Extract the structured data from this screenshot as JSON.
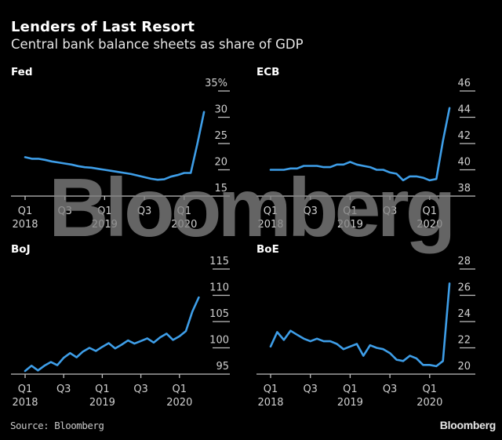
{
  "header": {
    "title": "Lenders of Last Resort",
    "subtitle": "Central bank balance sheets as share of GDP"
  },
  "footer": {
    "source": "Source: Bloomberg",
    "logo": "Bloomberg"
  },
  "watermark": "Bloomberg",
  "colors": {
    "background": "#000000",
    "line": "#3e9ee8",
    "axis": "#bfbfbf",
    "text": "#ffffff"
  },
  "chart_data": [
    {
      "type": "line",
      "title": "Fed",
      "xlabel": "",
      "ylabel": "",
      "unit": "%",
      "grid": false,
      "y_ticks": [
        "15",
        "20",
        "25",
        "30",
        "35%"
      ],
      "y_tick_values": [
        15,
        20,
        25,
        30,
        35
      ],
      "ylim": [
        15,
        35
      ],
      "x_ticks": [
        {
          "q": "Q1",
          "year": "2018",
          "index": 0
        },
        {
          "q": "Q3",
          "year": "",
          "index": 6
        },
        {
          "q": "Q1",
          "year": "2019",
          "index": 12
        },
        {
          "q": "Q3",
          "year": "",
          "index": 18
        },
        {
          "q": "Q1",
          "year": "2020",
          "index": 24
        }
      ],
      "x_frequency": "monthly",
      "x_start": "Jan 2018",
      "x_end": "Apr 2020",
      "series": [
        {
          "name": "Fed",
          "values": [
            22.4,
            22.1,
            22.1,
            21.9,
            21.6,
            21.4,
            21.2,
            21.0,
            20.7,
            20.5,
            20.4,
            20.2,
            20.0,
            19.8,
            19.6,
            19.4,
            19.2,
            18.9,
            18.6,
            18.3,
            18.1,
            18.2,
            18.7,
            19.0,
            19.4,
            19.4,
            25.0,
            31.0
          ]
        }
      ]
    },
    {
      "type": "line",
      "title": "ECB",
      "xlabel": "",
      "ylabel": "",
      "unit": "%",
      "grid": false,
      "y_ticks": [
        "38",
        "40",
        "42",
        "44",
        "46"
      ],
      "y_tick_values": [
        38,
        40,
        42,
        44,
        46
      ],
      "ylim": [
        38,
        46
      ],
      "x_ticks": [
        {
          "q": "Q1",
          "year": "2018",
          "index": 0
        },
        {
          "q": "Q3",
          "year": "",
          "index": 6
        },
        {
          "q": "Q1",
          "year": "2019",
          "index": 12
        },
        {
          "q": "Q3",
          "year": "",
          "index": 18
        },
        {
          "q": "Q1",
          "year": "2020",
          "index": 24
        }
      ],
      "x_frequency": "monthly",
      "x_start": "Jan 2018",
      "x_end": "Apr 2020",
      "series": [
        {
          "name": "ECB",
          "values": [
            40.0,
            40.0,
            40.0,
            40.1,
            40.1,
            40.3,
            40.3,
            40.3,
            40.2,
            40.2,
            40.4,
            40.4,
            40.6,
            40.4,
            40.3,
            40.2,
            40.0,
            40.0,
            39.8,
            39.7,
            39.2,
            39.5,
            39.5,
            39.4,
            39.2,
            39.3,
            42.2,
            44.7
          ]
        }
      ]
    },
    {
      "type": "line",
      "title": "BoJ",
      "xlabel": "",
      "ylabel": "",
      "unit": "%",
      "grid": false,
      "y_ticks": [
        "95",
        "100",
        "105",
        "110",
        "115"
      ],
      "y_tick_values": [
        95,
        100,
        105,
        110,
        115
      ],
      "ylim": [
        95,
        115
      ],
      "x_ticks": [
        {
          "q": "Q1",
          "year": "2018",
          "index": 0
        },
        {
          "q": "Q3",
          "year": "",
          "index": 6
        },
        {
          "q": "Q1",
          "year": "2019",
          "index": 12
        },
        {
          "q": "Q3",
          "year": "",
          "index": 18
        },
        {
          "q": "Q1",
          "year": "2020",
          "index": 24
        }
      ],
      "x_frequency": "monthly",
      "x_start": "Jan 2018",
      "x_end": "Apr 2020",
      "series": [
        {
          "name": "BoJ",
          "values": [
            95.6,
            96.6,
            95.7,
            96.6,
            97.3,
            96.7,
            98.1,
            99.0,
            98.2,
            99.3,
            100.0,
            99.4,
            100.2,
            100.9,
            99.9,
            100.6,
            101.4,
            100.8,
            101.3,
            101.8,
            101.0,
            102.0,
            102.7,
            101.5,
            102.2,
            103.2,
            106.9,
            109.6
          ]
        }
      ]
    },
    {
      "type": "line",
      "title": "BoE",
      "xlabel": "",
      "ylabel": "",
      "unit": "%",
      "grid": false,
      "y_ticks": [
        "20",
        "22",
        "24",
        "26",
        "28"
      ],
      "y_tick_values": [
        20,
        22,
        24,
        26,
        28
      ],
      "ylim": [
        20,
        28
      ],
      "x_ticks": [
        {
          "q": "Q1",
          "year": "2018",
          "index": 0
        },
        {
          "q": "Q3",
          "year": "",
          "index": 6
        },
        {
          "q": "Q1",
          "year": "2019",
          "index": 12
        },
        {
          "q": "Q3",
          "year": "",
          "index": 18
        },
        {
          "q": "Q1",
          "year": "2020",
          "index": 24
        }
      ],
      "x_frequency": "monthly",
      "x_start": "Jan 2018",
      "x_end": "Apr 2020",
      "series": [
        {
          "name": "BoE",
          "values": [
            22.1,
            23.2,
            22.6,
            23.3,
            23.0,
            22.7,
            22.5,
            22.7,
            22.5,
            22.5,
            22.3,
            21.9,
            22.1,
            22.3,
            21.4,
            22.2,
            22.0,
            21.9,
            21.6,
            21.1,
            21.0,
            21.4,
            21.2,
            20.7,
            20.7,
            20.6,
            21.0,
            26.9
          ]
        }
      ]
    }
  ]
}
